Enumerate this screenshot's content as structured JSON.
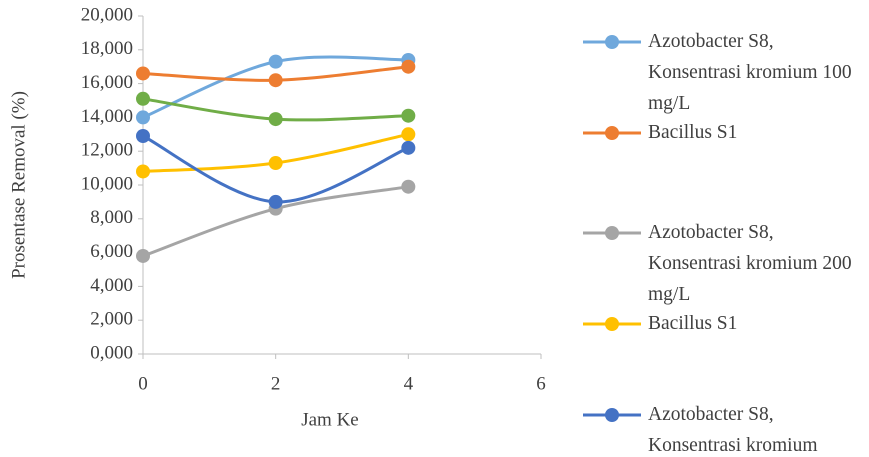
{
  "chart_data": {
    "type": "line",
    "x_label": "Jam Ke",
    "y_label": "Prosentase Removal (%)",
    "x": [
      0,
      2,
      4
    ],
    "xlim": [
      0,
      6
    ],
    "xticks": [
      0,
      2,
      4,
      6
    ],
    "ylim": [
      0,
      20
    ],
    "yticks": [
      {
        "value": 0,
        "label": "0,000"
      },
      {
        "value": 2,
        "label": "2,000"
      },
      {
        "value": 4,
        "label": "4,000"
      },
      {
        "value": 6,
        "label": "6,000"
      },
      {
        "value": 8,
        "label": "8,000"
      },
      {
        "value": 10,
        "label": "10,000"
      },
      {
        "value": 12,
        "label": "12,000"
      },
      {
        "value": 14,
        "label": "14,000"
      },
      {
        "value": 16,
        "label": "16,000"
      },
      {
        "value": 18,
        "label": "18,000"
      },
      {
        "value": 20,
        "label": "20,000"
      }
    ],
    "smooth": true,
    "series": [
      {
        "name": "Azotobacter S8, Konsentrasi kromium 100 mg/L",
        "color": "#6fa8dc",
        "values": [
          14.0,
          17.3,
          17.4
        ]
      },
      {
        "name": "Bacillus S1",
        "color": "#ed7d31",
        "values": [
          16.6,
          16.2,
          17.0
        ]
      },
      {
        "name": "Azotobacter S8, Konsentrasi kromium 200 mg/L",
        "color": "#a5a5a5",
        "values": [
          5.8,
          8.6,
          9.9
        ]
      },
      {
        "name": "Bacillus S1",
        "color": "#ffc000",
        "values": [
          10.8,
          11.3,
          13.0
        ]
      },
      {
        "name": "Azotobacter S8, Konsentrasi kromium",
        "color": "#4472c4",
        "values": [
          12.9,
          9.0,
          12.2
        ]
      },
      {
        "color": "#70ad47",
        "values": [
          15.1,
          13.9,
          14.1
        ]
      }
    ]
  }
}
